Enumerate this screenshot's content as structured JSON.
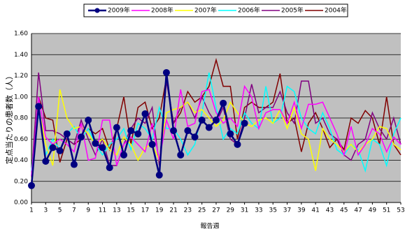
{
  "chart_data": {
    "type": "line",
    "x_label": "報告週",
    "y_label": "定点当たりの患者数（人）",
    "x": [
      1,
      2,
      3,
      4,
      5,
      6,
      7,
      8,
      9,
      10,
      11,
      12,
      13,
      14,
      15,
      16,
      17,
      18,
      19,
      20,
      21,
      22,
      23,
      24,
      25,
      26,
      27,
      28,
      29,
      30,
      31,
      32,
      33,
      34,
      35,
      36,
      37,
      38,
      39,
      40,
      41,
      42,
      43,
      44,
      45,
      46,
      47,
      48,
      49,
      50,
      51,
      52,
      53
    ],
    "xlim": [
      1,
      53
    ],
    "xticks": [
      1,
      3,
      5,
      7,
      9,
      11,
      13,
      15,
      17,
      19,
      21,
      23,
      25,
      27,
      29,
      31,
      33,
      35,
      37,
      39,
      41,
      43,
      45,
      47,
      49,
      51,
      53
    ],
    "ylim": [
      0,
      1.6
    ],
    "yticks": [
      {
        "value": 0,
        "label": "0.00"
      },
      {
        "value": 0.2,
        "label": "0.20"
      },
      {
        "value": 0.4,
        "label": "0.40"
      },
      {
        "value": 0.6,
        "label": "0.60"
      },
      {
        "value": 0.8,
        "label": "0.80"
      },
      {
        "value": 1.0,
        "label": "1.00"
      },
      {
        "value": 1.2,
        "label": "1.20"
      },
      {
        "value": 1.4,
        "label": "1.40"
      },
      {
        "value": 1.6,
        "label": "1.60"
      }
    ],
    "grid": true,
    "legend": "top",
    "series": [
      {
        "name": "2009年",
        "color": "#000080",
        "marker": true,
        "values": [
          0.16,
          0.91,
          0.39,
          0.52,
          0.49,
          0.65,
          0.36,
          0.62,
          0.78,
          0.56,
          0.52,
          0.33,
          0.71,
          0.45,
          0.68,
          0.65,
          0.84,
          0.55,
          0.26,
          1.23,
          0.68,
          0.45,
          0.68,
          0.62,
          0.78,
          0.71,
          0.78,
          0.94,
          0.65,
          0.55,
          0.75,
          null,
          null,
          null,
          null,
          null,
          null,
          null,
          null,
          null,
          null,
          null,
          null,
          null,
          null,
          null,
          null,
          null,
          null,
          null,
          null,
          null,
          null
        ]
      },
      {
        "name": "2008年",
        "color": "#ff00ff",
        "values": [
          0.25,
          1.0,
          0.62,
          0.55,
          0.6,
          0.55,
          0.48,
          0.75,
          0.4,
          0.42,
          0.78,
          0.78,
          0.35,
          0.55,
          0.62,
          0.55,
          0.48,
          0.75,
          0.4,
          0.78,
          0.6,
          1.07,
          0.72,
          0.75,
          1.05,
          1.07,
          0.85,
          0.75,
          0.8,
          0.72,
          1.1,
          1.0,
          0.7,
          0.85,
          0.88,
          0.88,
          0.75,
          0.95,
          0.7,
          0.93,
          0.93,
          0.95,
          0.8,
          0.65,
          0.45,
          0.72,
          0.45,
          0.55,
          0.7,
          0.65,
          0.48,
          0.62,
          0.55
        ]
      },
      {
        "name": "2007年",
        "color": "#ffff00",
        "values": [
          0.2,
          0.9,
          0.55,
          0.35,
          1.07,
          0.8,
          0.7,
          0.72,
          0.65,
          0.55,
          0.6,
          0.5,
          0.45,
          0.62,
          0.55,
          0.4,
          0.52,
          0.55,
          0.4,
          0.85,
          0.88,
          0.9,
          0.95,
          0.85,
          0.88,
          0.8,
          0.72,
          0.78,
          0.95,
          0.85,
          0.75,
          0.72,
          0.78,
          0.8,
          0.75,
          0.88,
          0.7,
          0.9,
          0.65,
          0.6,
          0.3,
          0.7,
          0.6,
          0.55,
          0.48,
          0.55,
          0.48,
          0.55,
          0.6,
          0.72,
          0.7,
          0.55,
          0.5
        ]
      },
      {
        "name": "2006年",
        "color": "#00ffff",
        "values": [
          0.3,
          0.85,
          0.45,
          0.6,
          0.5,
          0.65,
          0.72,
          0.6,
          0.7,
          0.55,
          0.45,
          0.55,
          0.6,
          0.7,
          0.5,
          0.75,
          0.7,
          0.6,
          0.9,
          0.7,
          0.7,
          0.6,
          0.45,
          0.55,
          0.85,
          1.23,
          0.9,
          0.6,
          0.7,
          0.65,
          0.85,
          0.75,
          0.7,
          1.1,
          0.75,
          0.8,
          1.1,
          1.05,
          0.8,
          0.7,
          0.65,
          0.85,
          0.7,
          0.5,
          0.45,
          0.55,
          0.5,
          0.3,
          0.6,
          0.55,
          0.35,
          0.65,
          0.8
        ]
      },
      {
        "name": "2005年",
        "color": "#800080",
        "values": [
          0.25,
          1.23,
          0.68,
          0.68,
          0.65,
          0.6,
          0.55,
          0.78,
          0.6,
          0.45,
          0.6,
          0.35,
          0.35,
          0.55,
          0.7,
          0.8,
          0.75,
          0.9,
          0.35,
          1.15,
          0.75,
          0.9,
          0.95,
          0.8,
          1.0,
          0.85,
          0.75,
          0.9,
          0.6,
          0.55,
          0.8,
          1.12,
          0.85,
          0.9,
          0.9,
          1.05,
          0.85,
          0.75,
          1.15,
          1.15,
          0.75,
          0.8,
          0.65,
          0.6,
          0.45,
          0.4,
          0.55,
          0.6,
          0.85,
          0.7,
          0.6,
          0.8,
          0.55
        ]
      },
      {
        "name": "2004年",
        "color": "#800000",
        "values": [
          0.2,
          1.0,
          0.8,
          0.78,
          0.38,
          0.6,
          0.55,
          0.6,
          0.7,
          0.65,
          0.7,
          0.5,
          0.7,
          1.0,
          0.55,
          0.9,
          0.95,
          0.7,
          0.8,
          1.18,
          0.75,
          0.85,
          1.05,
          0.95,
          1.0,
          1.1,
          1.35,
          1.1,
          1.1,
          0.6,
          0.9,
          0.95,
          0.9,
          0.9,
          0.95,
          1.22,
          0.75,
          0.8,
          0.48,
          0.75,
          0.85,
          0.7,
          0.52,
          0.6,
          0.5,
          0.8,
          0.75,
          0.87,
          0.8,
          0.55,
          1.0,
          0.55,
          0.45
        ]
      }
    ]
  }
}
